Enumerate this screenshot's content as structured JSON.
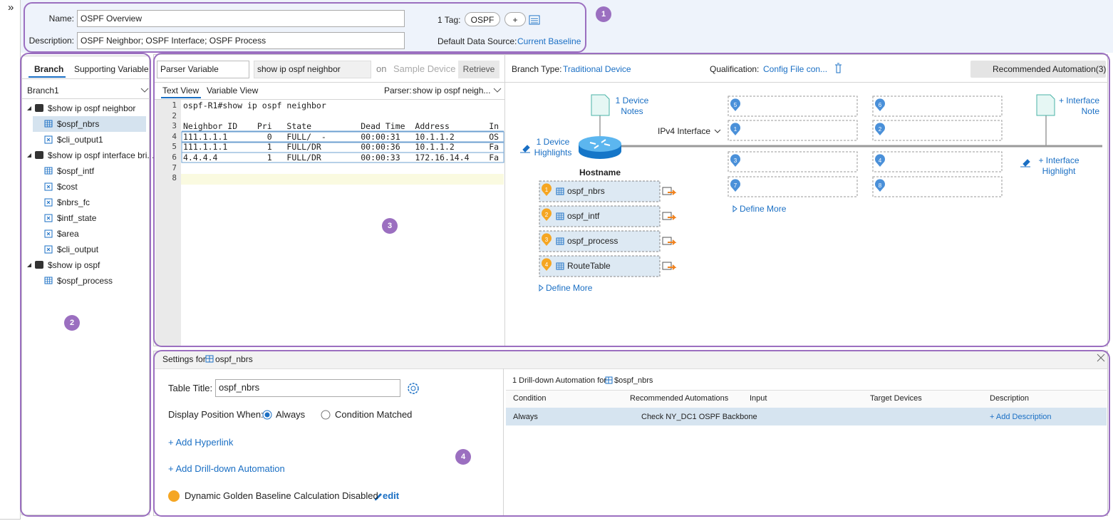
{
  "nav": {
    "expand": "»"
  },
  "header": {
    "name_label": "Name:",
    "name": "OSPF Overview",
    "description_label": "Description:",
    "description": "OSPF Neighbor; OSPF Interface; OSPF Process",
    "tag_label": "1 Tag:",
    "tag": "OSPF",
    "tag_add": "+",
    "data_source_label": "Default Data Source:",
    "data_source": "Current Baseline"
  },
  "callouts": [
    "1",
    "2",
    "3",
    "4"
  ],
  "branch_panel": {
    "tabs": [
      "Branch",
      "Supporting Variable"
    ],
    "branch": "Branch1",
    "tree": [
      {
        "label": "$show ip ospf neighbor",
        "children": [
          "$ospf_nbrs",
          "$cli_output1"
        ]
      },
      {
        "label": "$show ip ospf interface bri...",
        "children": [
          "$ospf_intf",
          "$cost",
          "$nbrs_fc",
          "$intf_state",
          "$area",
          "$cli_output"
        ]
      },
      {
        "label": "$show ip ospf",
        "children": [
          "$ospf_process"
        ]
      }
    ]
  },
  "parser_panel": {
    "variable_type": "Parser Variable",
    "command": "show ip ospf neighbor",
    "on": "on",
    "device_placeholder": "Sample Device",
    "retrieve": "Retrieve",
    "tabs": [
      "Text View",
      "Variable View"
    ],
    "parser_label": "Parser:",
    "parser": "show ip ospf neigh...",
    "lines": [
      {
        "number": 1,
        "text": "ospf-R1#show ip ospf neighbor"
      },
      {
        "number": 2
      },
      {
        "number": 3,
        "text": "Neighbor ID    Pri   State          Dead Time  Address        In"
      },
      {
        "number": 4,
        "text": "111.1.1.1        0   FULL/  -       00:00:31   10.1.1.2       OS"
      },
      {
        "number": 5,
        "text": "111.1.1.1        1   FULL/DR        00:00:36   10.1.1.2       Fa"
      },
      {
        "number": 6,
        "text": "4.4.4.4          1   FULL/DR        00:00:33   172.16.14.4    Fa"
      },
      {
        "number": 7
      },
      {
        "number": 8
      }
    ]
  },
  "diagram": {
    "branch_type_label": "Branch Type:",
    "branch_type": "Traditional Device",
    "qualification_label": "Qualification:",
    "qualification": "Config File con...",
    "recommended": "Recommended Automation(3)",
    "device_notes": "1 Device Notes",
    "device_highlights": "1 Device Highlights",
    "hostname": "Hostname",
    "device_items": [
      {
        "number": 1,
        "name": "ospf_nbrs"
      },
      {
        "number": 2,
        "name": "ospf_intf"
      },
      {
        "number": 3,
        "name": "ospf_process"
      },
      {
        "number": 4,
        "name": "RouteTable"
      }
    ],
    "device_define_more": "Define More",
    "interface_label": "IPv4 Interface",
    "interface_slots": [
      5,
      6,
      1,
      2,
      3,
      4,
      7,
      8
    ],
    "interface_define_more": "Define More",
    "interface_note": "+ Interface Note",
    "interface_highlight": "+ Interface Highlight"
  },
  "settings": {
    "title_prefix": "Settings for",
    "title": "ospf_nbrs",
    "table_title_label": "Table Title:",
    "table_title": "ospf_nbrs",
    "display_label": "Display Position When:",
    "display_options": [
      "Always",
      "Condition Matched"
    ],
    "add_hyperlink": "+ Add Hyperlink",
    "add_drilldown": "+ Add Drill-down Automation",
    "baseline": "Dynamic Golden Baseline Calculation Disabled",
    "edit": "edit",
    "drilldown_prefix": "1 Drill-down Automation for",
    "drilldown_target": "$ospf_nbrs",
    "table": {
      "headers": [
        "Condition",
        "Recommended Automations",
        "Input",
        "Target Devices",
        "Description"
      ],
      "row": {
        "condition": "Always",
        "automation": "Check NY_DC1 OSPF Backbone",
        "description": "+ Add Description"
      }
    }
  }
}
